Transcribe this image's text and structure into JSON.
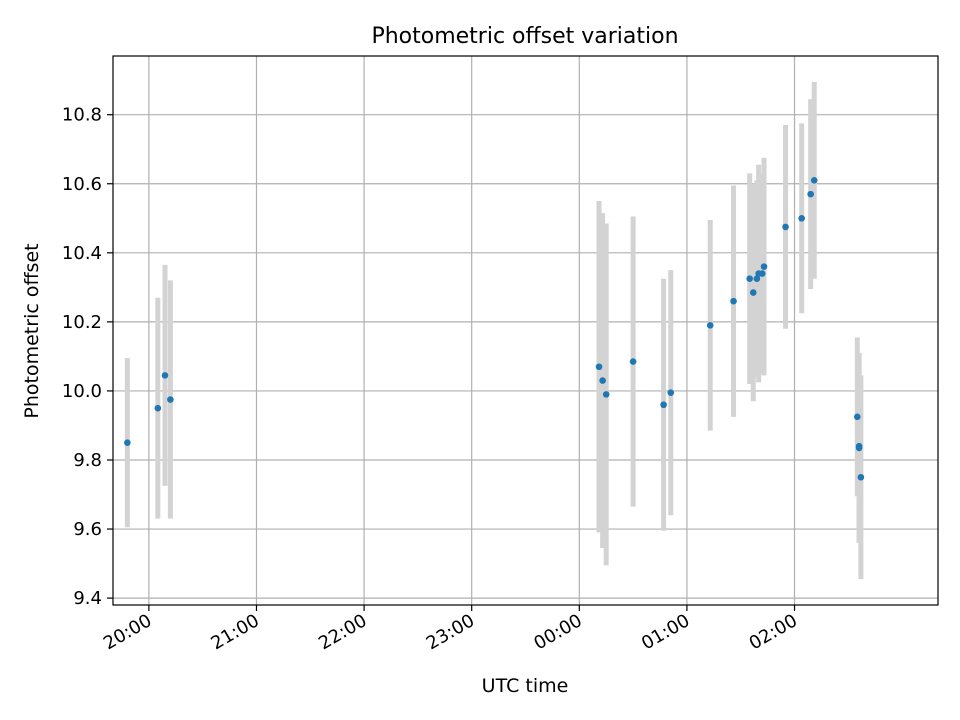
{
  "chart_data": {
    "type": "scatter",
    "title": "Photometric offset variation",
    "xlabel": "UTC time",
    "ylabel": "Photometric offset",
    "xlim": [
      "19:40",
      "03:20"
    ],
    "ylim": [
      9.38,
      10.97
    ],
    "x_ticks": [
      "20:00",
      "21:00",
      "22:00",
      "23:00",
      "00:00",
      "01:00",
      "02:00"
    ],
    "y_ticks": [
      9.4,
      9.6,
      9.8,
      10.0,
      10.2,
      10.4,
      10.6,
      10.8
    ],
    "y_tick_labels": [
      "9.4",
      "9.6",
      "9.8",
      "10.0",
      "10.2",
      "10.4",
      "10.6",
      "10.8"
    ],
    "grid": true,
    "point_color": "#1f77b4",
    "errorbar_color": "#d3d3d3",
    "points": [
      {
        "t": "19:48",
        "y": 9.85,
        "err": 0.245
      },
      {
        "t": "20:05",
        "y": 9.95,
        "err": 0.32
      },
      {
        "t": "20:09",
        "y": 10.045,
        "err": 0.32
      },
      {
        "t": "20:12",
        "y": 9.975,
        "err": 0.345
      },
      {
        "t": "00:11",
        "y": 10.07,
        "err": 0.48
      },
      {
        "t": "00:13",
        "y": 10.03,
        "err": 0.485
      },
      {
        "t": "00:15",
        "y": 9.99,
        "err": 0.495
      },
      {
        "t": "00:30",
        "y": 10.085,
        "err": 0.42
      },
      {
        "t": "00:47",
        "y": 9.96,
        "err": 0.365
      },
      {
        "t": "00:51",
        "y": 9.995,
        "err": 0.355
      },
      {
        "t": "01:13",
        "y": 10.19,
        "err": 0.305
      },
      {
        "t": "01:26",
        "y": 10.26,
        "err": 0.335
      },
      {
        "t": "01:35",
        "y": 10.325,
        "err": 0.305
      },
      {
        "t": "01:37",
        "y": 10.285,
        "err": 0.315
      },
      {
        "t": "01:39",
        "y": 10.325,
        "err": 0.285
      },
      {
        "t": "01:40",
        "y": 10.34,
        "err": 0.315
      },
      {
        "t": "01:42",
        "y": 10.34,
        "err": 0.29
      },
      {
        "t": "01:43",
        "y": 10.36,
        "err": 0.315
      },
      {
        "t": "01:55",
        "y": 10.475,
        "err": 0.295
      },
      {
        "t": "02:04",
        "y": 10.5,
        "err": 0.275
      },
      {
        "t": "02:09",
        "y": 10.57,
        "err": 0.275
      },
      {
        "t": "02:11",
        "y": 10.61,
        "err": 0.285
      },
      {
        "t": "02:35",
        "y": 9.925,
        "err": 0.23
      },
      {
        "t": "02:36",
        "y": 9.84,
        "err": 0.27
      },
      {
        "t": "02:36",
        "y": 9.835,
        "err": 0.275
      },
      {
        "t": "02:37",
        "y": 9.75,
        "err": 0.295
      }
    ]
  }
}
